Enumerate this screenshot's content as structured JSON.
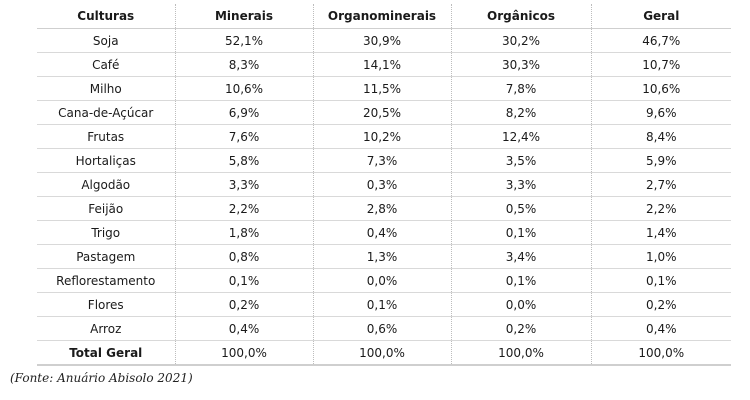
{
  "table": {
    "headers": [
      "Culturas",
      "Minerais",
      "Organominerais",
      "Orgânicos",
      "Geral"
    ],
    "rows": [
      [
        "Soja",
        "52,1%",
        "30,9%",
        "30,2%",
        "46,7%"
      ],
      [
        "Café",
        "8,3%",
        "14,1%",
        "30,3%",
        "10,7%"
      ],
      [
        "Milho",
        "10,6%",
        "11,5%",
        "7,8%",
        "10,6%"
      ],
      [
        "Cana-de-Açúcar",
        "6,9%",
        "20,5%",
        "8,2%",
        "9,6%"
      ],
      [
        "Frutas",
        "7,6%",
        "10,2%",
        "12,4%",
        "8,4%"
      ],
      [
        "Hortaliças",
        "5,8%",
        "7,3%",
        "3,5%",
        "5,9%"
      ],
      [
        "Algodão",
        "3,3%",
        "0,3%",
        "3,3%",
        "2,7%"
      ],
      [
        "Feijão",
        "2,2%",
        "2,8%",
        "0,5%",
        "2,2%"
      ],
      [
        "Trigo",
        "1,8%",
        "0,4%",
        "0,1%",
        "1,4%"
      ],
      [
        "Pastagem",
        "0,8%",
        "1,3%",
        "3,4%",
        "1,0%"
      ],
      [
        "Reflorestamento",
        "0,1%",
        "0,0%",
        "0,1%",
        "0,1%"
      ],
      [
        "Flores",
        "0,2%",
        "0,1%",
        "0,0%",
        "0,2%"
      ],
      [
        "Arroz",
        "0,4%",
        "0,6%",
        "0,2%",
        "0,4%"
      ]
    ],
    "total": [
      "Total Geral",
      "100,0%",
      "100,0%",
      "100,0%",
      "100,0%"
    ]
  },
  "source": "(Fonte: Anuário Abisolo 2021)"
}
